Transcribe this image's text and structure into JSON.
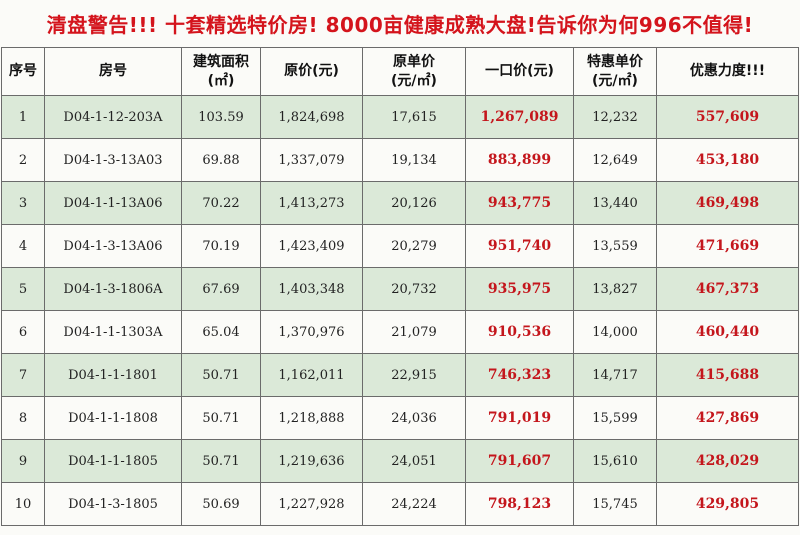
{
  "title": "清盘警告!!! 十套精选特价房! 8000亩健康成熟大盘!告诉你为何996不值得!",
  "headers": {
    "index": "序号",
    "room": "房号",
    "area_line1": "建筑面积",
    "area_line2": "(㎡)",
    "orig_price": "原价(元)",
    "orig_unit_line1": "原单价",
    "orig_unit_line2": "(元/㎡)",
    "fixed_price": "一口价(元)",
    "special_unit_line1": "特惠单价",
    "special_unit_line2": "(元/㎡)",
    "discount": "优惠力度!!!"
  },
  "rows": [
    {
      "index": "1",
      "room": "D04-1-12-203A",
      "area": "103.59",
      "orig_price": "1,824,698",
      "orig_unit": "17,615",
      "fixed_price": "1,267,089",
      "special_unit": "12,232",
      "discount": "557,609"
    },
    {
      "index": "2",
      "room": "D04-1-3-13A03",
      "area": "69.88",
      "orig_price": "1,337,079",
      "orig_unit": "19,134",
      "fixed_price": "883,899",
      "special_unit": "12,649",
      "discount": "453,180"
    },
    {
      "index": "3",
      "room": "D04-1-1-13A06",
      "area": "70.22",
      "orig_price": "1,413,273",
      "orig_unit": "20,126",
      "fixed_price": "943,775",
      "special_unit": "13,440",
      "discount": "469,498"
    },
    {
      "index": "4",
      "room": "D04-1-3-13A06",
      "area": "70.19",
      "orig_price": "1,423,409",
      "orig_unit": "20,279",
      "fixed_price": "951,740",
      "special_unit": "13,559",
      "discount": "471,669"
    },
    {
      "index": "5",
      "room": "D04-1-3-1806A",
      "area": "67.69",
      "orig_price": "1,403,348",
      "orig_unit": "20,732",
      "fixed_price": "935,975",
      "special_unit": "13,827",
      "discount": "467,373"
    },
    {
      "index": "6",
      "room": "D04-1-1-1303A",
      "area": "65.04",
      "orig_price": "1,370,976",
      "orig_unit": "21,079",
      "fixed_price": "910,536",
      "special_unit": "14,000",
      "discount": "460,440"
    },
    {
      "index": "7",
      "room": "D04-1-1-1801",
      "area": "50.71",
      "orig_price": "1,162,011",
      "orig_unit": "22,915",
      "fixed_price": "746,323",
      "special_unit": "14,717",
      "discount": "415,688"
    },
    {
      "index": "8",
      "room": "D04-1-1-1808",
      "area": "50.71",
      "orig_price": "1,218,888",
      "orig_unit": "24,036",
      "fixed_price": "791,019",
      "special_unit": "15,599",
      "discount": "427,869"
    },
    {
      "index": "9",
      "room": "D04-1-1-1805",
      "area": "50.71",
      "orig_price": "1,219,636",
      "orig_unit": "24,051",
      "fixed_price": "791,607",
      "special_unit": "15,610",
      "discount": "428,029"
    },
    {
      "index": "10",
      "room": "D04-1-3-1805",
      "area": "50.69",
      "orig_price": "1,227,928",
      "orig_unit": "24,224",
      "fixed_price": "798,123",
      "special_unit": "15,745",
      "discount": "429,805"
    }
  ],
  "colors": {
    "title": "#d4141c",
    "highlight": "#c4161c",
    "row_shade": "#dbe9d8"
  }
}
